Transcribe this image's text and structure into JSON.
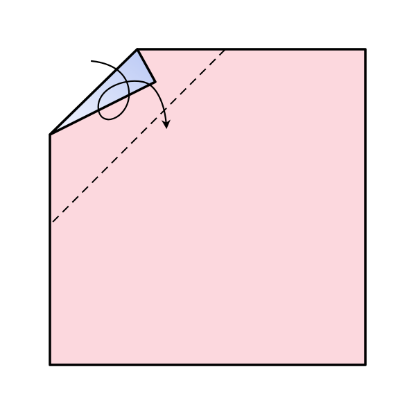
{
  "colors": {
    "background": "#ffffff",
    "paper_front": "#fcd8de",
    "paper_back_light": "#f4f6ff",
    "paper_back_dark": "#b9c8f4",
    "outline": "#000000"
  },
  "diagram": {
    "subject": "origami-square-sheet",
    "fold_type": "valley-fold",
    "fold_line_style": "dashed",
    "folded_corner": "top-left",
    "arrow_direction": "fold-over-forward"
  }
}
